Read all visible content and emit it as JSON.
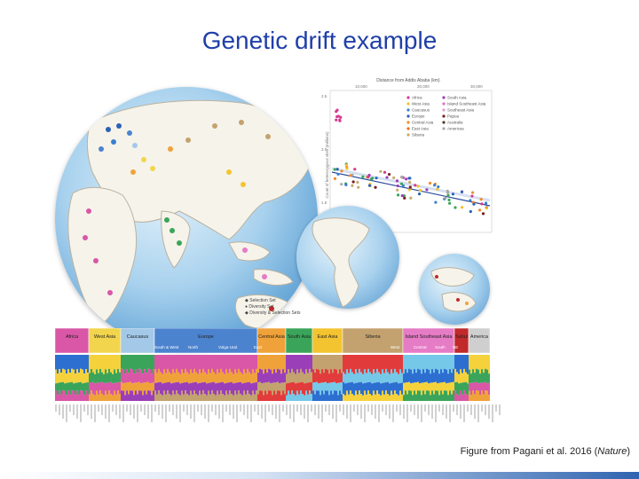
{
  "slide": {
    "title": "Genetic drift example",
    "caption_prefix": "Figure from Pagani et al. 2016 (",
    "caption_journal": "Nature",
    "caption_suffix": ")"
  },
  "map_legend": [
    "Selection Set",
    "Diversity Set",
    "Diversity & Selection Sets"
  ],
  "scatter": {
    "top_axis_label": "Distance from Addis Ababa (km)",
    "top_ticks": [
      "10,000",
      "20,000",
      "30,000"
    ],
    "y_axis_label": "Count of heterozygous sites (millions)",
    "y_ticks": [
      "2.5",
      "2.0",
      "1.5"
    ],
    "legend_left": [
      "Africa",
      "West Asia",
      "Caucasus",
      "Europe",
      "Central Asia",
      "East Asia",
      "Siberia"
    ],
    "legend_right": [
      "South Asia",
      "Island Southeast Asia",
      "Southeast Asia",
      "Papua",
      "Australia",
      "Americas"
    ],
    "legend_colors_left": [
      "#d63a8f",
      "#f3c12a",
      "#3b7fd0",
      "#2a62b5",
      "#f28b2a",
      "#ee6f1c",
      "#c9a86a"
    ],
    "legend_colors_right": [
      "#9b3fb8",
      "#e46fc0",
      "#d9a3d9",
      "#7a1f1f",
      "#5b3a1e",
      "#a9a9a9"
    ]
  },
  "regions": [
    {
      "label": "Africa",
      "color": "#d957a6"
    },
    {
      "label": "West Asia",
      "color": "#f2d54d"
    },
    {
      "label": "Caucasus",
      "color": "#a4c9e8"
    },
    {
      "label": "Europe",
      "color": "#4c83cf"
    },
    {
      "label": "Central Asia",
      "color": "#f0a23a"
    },
    {
      "label": "South Asia",
      "color": "#3aa55a"
    },
    {
      "label": "East Asia",
      "color": "#f4c430"
    },
    {
      "label": "Siberia",
      "color": "#c3a26f"
    },
    {
      "label": "Island Southeast Asia",
      "color": "#e67bc6"
    },
    {
      "label": "Sahul",
      "color": "#c02a2a"
    },
    {
      "label": "America",
      "color": "#cfcfcf"
    }
  ],
  "subregions": [
    "South & West",
    "North",
    "Volga-Ural",
    "East",
    "West",
    "Central",
    "South",
    "NE"
  ]
}
